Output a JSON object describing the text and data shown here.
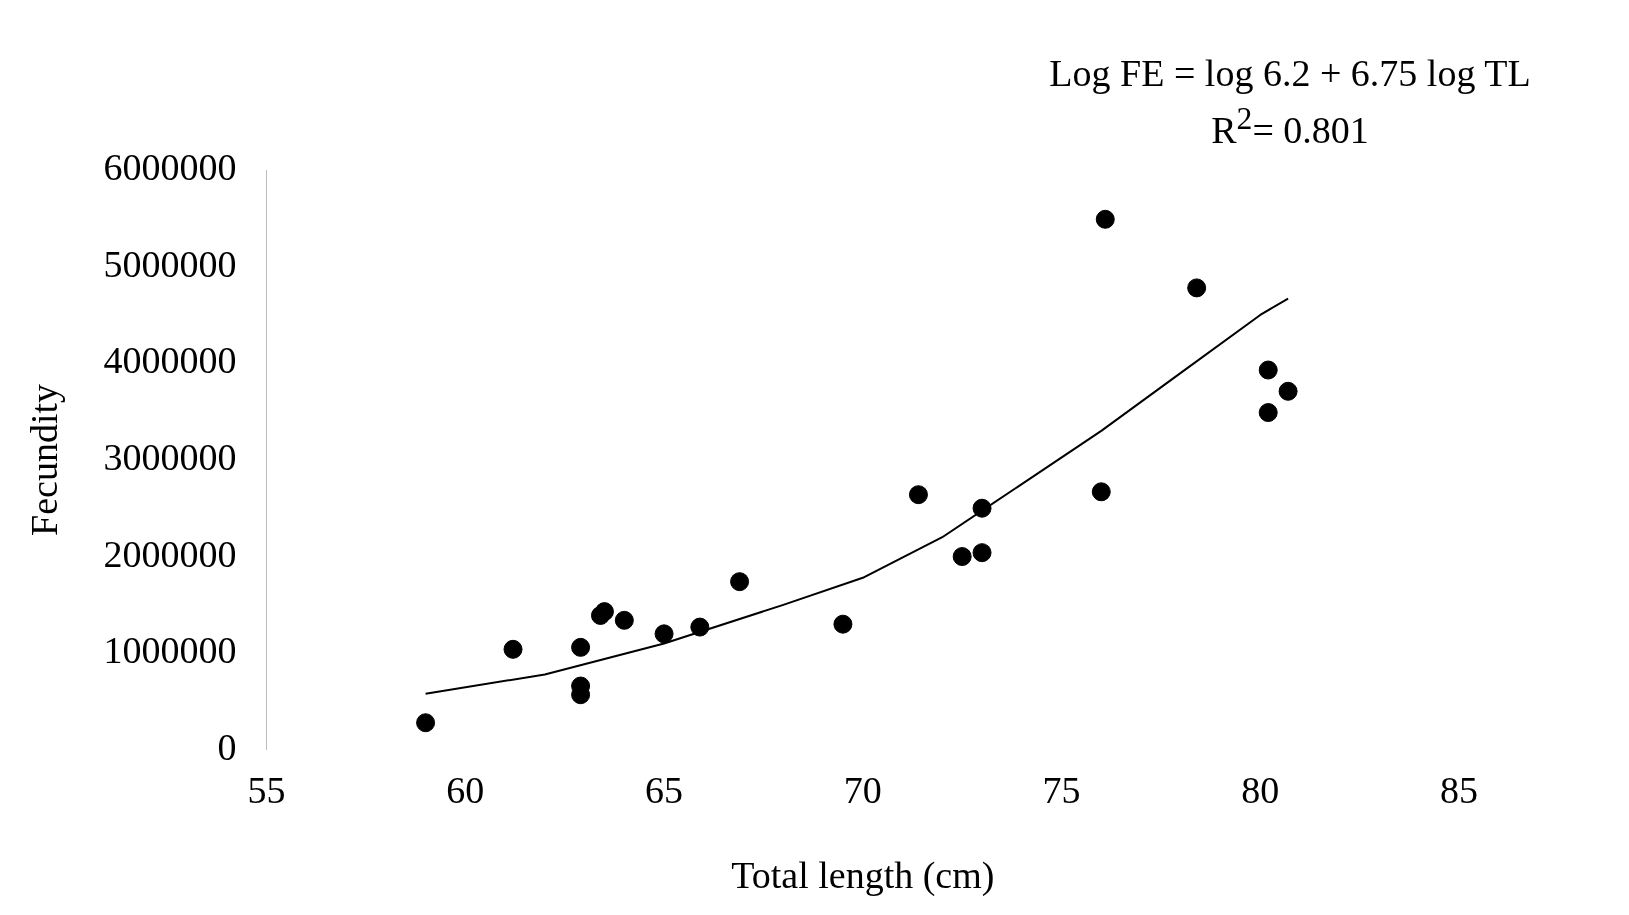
{
  "chart_data": {
    "type": "scatter",
    "xlabel": "Total length (cm)",
    "ylabel": "Fecundity",
    "annotations": [
      "Log FE = log 6.2 + 6.75 log TL",
      "R$^{2}$= 0.801"
    ],
    "xlim": [
      55,
      85
    ],
    "xticks": [
      55,
      60,
      65,
      70,
      75,
      80,
      85
    ],
    "ylim": [
      0,
      6000000
    ],
    "yticks": [
      0,
      1000000,
      2000000,
      3000000,
      4000000,
      5000000,
      6000000
    ],
    "grid": false,
    "legend": false,
    "marker": "circle",
    "series": [
      {
        "color": "#000000",
        "x": [
          59.0,
          61.2,
          62.9,
          62.9,
          62.9,
          63.4,
          63.5,
          64.0,
          65.0,
          65.9,
          66.9,
          69.5,
          71.4,
          72.5,
          73.0,
          73.0,
          76.0,
          76.1,
          78.4,
          80.2,
          80.2,
          80.7
        ],
        "values": [
          280000,
          1040000,
          1060000,
          660000,
          570000,
          1390000,
          1430000,
          1340000,
          1200000,
          1270000,
          1740000,
          1300000,
          2640000,
          2000000,
          2040000,
          2500000,
          2670000,
          5490000,
          4780000,
          3930000,
          3490000,
          3710000
        ]
      },
      {
        "type": "line",
        "color": "#000000",
        "marker": "none",
        "line_style": "solid",
        "x": [
          59,
          62,
          65,
          68,
          70,
          72,
          74,
          76,
          78,
          80,
          80.7
        ],
        "values": [
          580000,
          780000,
          1100000,
          1500000,
          1780000,
          2200000,
          2750000,
          3300000,
          3900000,
          4500000,
          4670000
        ]
      }
    ]
  }
}
